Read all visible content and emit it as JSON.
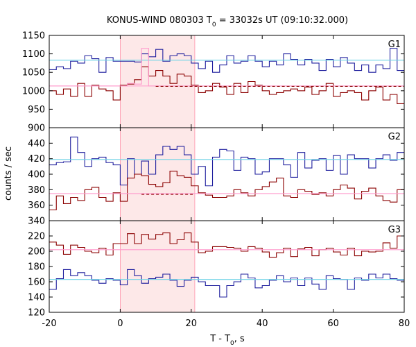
{
  "chart_data": {
    "type": "line",
    "title_main": "KONUS-WIND 080303 T",
    "title_sub": "0",
    "title_rest": " = 33032s UT (09:10:32.000)",
    "xlabel_main": "T - T",
    "xlabel_sub": "0",
    "xlabel_rest": ", s",
    "ylabel": "counts / sec",
    "xlim": [
      -20,
      80
    ],
    "xticks": [
      "-20",
      "0",
      "20",
      "40",
      "60",
      "80"
    ],
    "highlight": {
      "x0": 0,
      "x1": 21,
      "color": "#fde8e8"
    },
    "colors": {
      "blue": "#1f1f9e",
      "red": "#8b0000",
      "cyan": "#6fd3e6",
      "pink": "#ff99cc",
      "frame": "#000000"
    },
    "edges": [
      -20,
      -18,
      -16,
      -14,
      -12,
      -10,
      -8,
      -6,
      -4,
      -2,
      0,
      2,
      4,
      6,
      8,
      10,
      12,
      14,
      16,
      18,
      20,
      22,
      24,
      26,
      28,
      30,
      32,
      34,
      36,
      38,
      40,
      42,
      44,
      46,
      48,
      50,
      52,
      54,
      56,
      58,
      60,
      62,
      64,
      66,
      68,
      70,
      72,
      74,
      76,
      78,
      80
    ],
    "panels": [
      {
        "label": "G1",
        "ylim": [
          900,
          1150
        ],
        "yticks": [
          "900",
          "950",
          "1000",
          "1050",
          "1100",
          "1150"
        ],
        "series": [
          {
            "color": "blue",
            "values": [
              1057,
              1065,
              1060,
              1080,
              1075,
              1095,
              1087,
              1050,
              1090,
              1080,
              1080,
              1080,
              1078,
              1100,
              1092,
              1112,
              1080,
              1095,
              1100,
              1095,
              1075,
              1060,
              1080,
              1050,
              1070,
              1095,
              1075,
              1080,
              1095,
              1080,
              1065,
              1080,
              1070,
              1100,
              1085,
              1070,
              1085,
              1075,
              1055,
              1085,
              1065,
              1090,
              1075,
              1055,
              1070,
              1050,
              1070,
              1060,
              1115,
              1055
            ]
          },
          {
            "color": "red",
            "values": [
              1000,
              990,
              1005,
              985,
              1020,
              985,
              1015,
              1005,
              1000,
              975,
              1015,
              1018,
              1030,
              1065,
              1040,
              1055,
              1040,
              1020,
              1045,
              1040,
              1015,
              995,
              1000,
              1020,
              1010,
              990,
              1020,
              995,
              1025,
              1015,
              1000,
              990,
              995,
              1000,
              1005,
              1000,
              1010,
              990,
              1000,
              1020,
              985,
              995,
              1000,
              995,
              975,
              1000,
              1010,
              975,
              990,
              965
            ]
          },
          {
            "color": "cyan",
            "flat": true,
            "values": [
              1083
            ]
          },
          {
            "color": "pink",
            "flat": true,
            "values": [
              1013
            ]
          },
          {
            "color": "pink",
            "values": [
              1013,
              1013,
              1013,
              1013,
              1013,
              1013,
              1013,
              1013,
              1013,
              1013,
              1013,
              1020,
              1018,
              1115,
              1013,
              1013,
              1013,
              1013,
              1013,
              1013,
              1013,
              1013,
              1013,
              1013,
              1013,
              1013,
              1013,
              1013,
              1013,
              1013,
              1013,
              1013,
              1013,
              1013,
              1013,
              1013,
              1013,
              1013,
              1013,
              1013,
              1013,
              1013,
              1013,
              1013,
              1013,
              1013,
              1013,
              1013,
              1013,
              1013
            ]
          }
        ],
        "dashed": {
          "color": "red",
          "x0": 10,
          "x1": 80,
          "value": 1012
        }
      },
      {
        "label": "G2",
        "ylim": [
          340,
          460
        ],
        "yticks": [
          "340",
          "360",
          "380",
          "400",
          "420",
          "440"
        ],
        "series": [
          {
            "color": "blue",
            "values": [
              412,
              415,
              416,
              448,
              428,
              410,
              420,
              422,
              415,
              412,
              386,
              420,
              400,
              417,
              400,
              425,
              436,
              432,
              436,
              425,
              400,
              410,
              385,
              422,
              432,
              430,
              405,
              422,
              420,
              400,
              403,
              420,
              420,
              412,
              396,
              428,
              408,
              418,
              420,
              405,
              424,
              400,
              425,
              420,
              420,
              408,
              420,
              425,
              418,
              428
            ]
          },
          {
            "color": "red",
            "values": [
              354,
              372,
              362,
              370,
              366,
              380,
              383,
              370,
              365,
              376,
              365,
              395,
              400,
              398,
              387,
              384,
              389,
              404,
              398,
              396,
              385,
              376,
              373,
              370,
              370,
              372,
              380,
              376,
              372,
              380,
              384,
              390,
              395,
              372,
              370,
              380,
              378,
              374,
              376,
              372,
              380,
              386,
              382,
              368,
              378,
              382,
              372,
              366,
              364,
              380
            ]
          },
          {
            "color": "cyan",
            "flat": true,
            "values": [
              419
            ]
          },
          {
            "color": "pink",
            "flat": true,
            "values": [
              375
            ]
          }
        ],
        "dashed": {
          "color": "red",
          "x0": 6,
          "x1": 21,
          "value": 374
        }
      },
      {
        "label": "G3",
        "ylim": [
          120,
          240
        ],
        "yticks": [
          "120",
          "140",
          "160",
          "180",
          "200",
          "220"
        ],
        "series": [
          {
            "color": "red",
            "values": [
              212,
              208,
              196,
              208,
              205,
              200,
              198,
              204,
              195,
              210,
              210,
              223,
              210,
              222,
              216,
              222,
              224,
              210,
              215,
              224,
              212,
              198,
              200,
              206,
              206,
              205,
              204,
              200,
              206,
              204,
              199,
              192,
              198,
              204,
              193,
              203,
              205,
              194,
              202,
              204,
              199,
              195,
              204,
              194,
              200,
              199,
              200,
              211,
              204,
              220
            ]
          },
          {
            "color": "blue",
            "values": [
              150,
              164,
              176,
              168,
              172,
              168,
              162,
              158,
              164,
              162,
              156,
              176,
              168,
              158,
              164,
              166,
              170,
              162,
              154,
              162,
              166,
              160,
              155,
              155,
              140,
              155,
              160,
              170,
              165,
              152,
              155,
              162,
              168,
              160,
              165,
              155,
              165,
              157,
              150,
              168,
              164,
              163,
              150,
              165,
              162,
              170,
              165,
              170,
              164,
              162
            ]
          },
          {
            "color": "cyan",
            "flat": true,
            "values": [
              163
            ]
          },
          {
            "color": "pink",
            "flat": true,
            "values": [
              202
            ]
          }
        ]
      }
    ]
  }
}
